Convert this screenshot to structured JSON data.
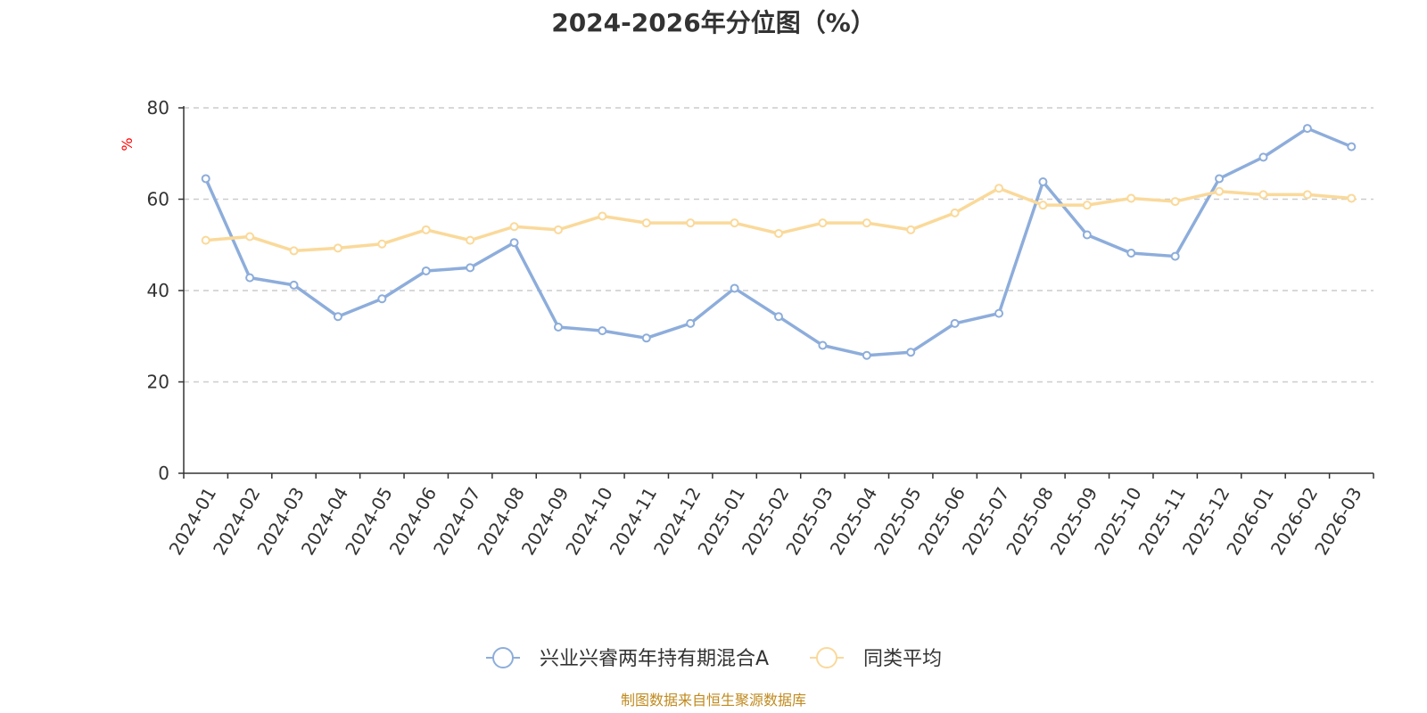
{
  "chart_data": {
    "type": "line",
    "title": "2024-2026年分位图（%）",
    "ylabel": "%",
    "ylim": [
      0,
      80
    ],
    "yticks": [
      0,
      20,
      40,
      60,
      80
    ],
    "grid": true,
    "legend_position": "bottom-center",
    "categories": [
      "2024-01",
      "2024-02",
      "2024-03",
      "2024-04",
      "2024-05",
      "2024-06",
      "2024-07",
      "2024-08",
      "2024-09",
      "2024-10",
      "2024-11",
      "2024-12",
      "2025-01",
      "2025-02",
      "2025-03",
      "2025-04",
      "2025-05",
      "2025-06",
      "2025-07",
      "2025-08",
      "2025-09",
      "2025-10",
      "2025-11",
      "2025-12",
      "2026-01",
      "2026-02",
      "2026-03"
    ],
    "series": [
      {
        "name": "兴业兴睿两年持有期混合A",
        "color": "#8daddb",
        "values": [
          64.5,
          42.8,
          41.2,
          34.3,
          38.2,
          44.3,
          45.0,
          50.5,
          32.0,
          31.2,
          29.6,
          32.8,
          40.5,
          34.3,
          28.0,
          25.8,
          26.5,
          32.8,
          35.0,
          63.8,
          52.2,
          48.2,
          47.5,
          64.5,
          69.2,
          75.5,
          71.5
        ]
      },
      {
        "name": "同类平均",
        "color": "#fad99a",
        "values": [
          51.0,
          51.8,
          48.7,
          49.3,
          50.2,
          53.3,
          51.0,
          54.0,
          53.3,
          56.3,
          54.8,
          54.8,
          54.8,
          52.5,
          54.8,
          54.8,
          53.3,
          57.0,
          62.4,
          58.7,
          58.7,
          60.2,
          59.5,
          61.7,
          61.0,
          61.0,
          60.2
        ]
      }
    ]
  },
  "source_note": "制图数据来自恒生聚源数据库"
}
